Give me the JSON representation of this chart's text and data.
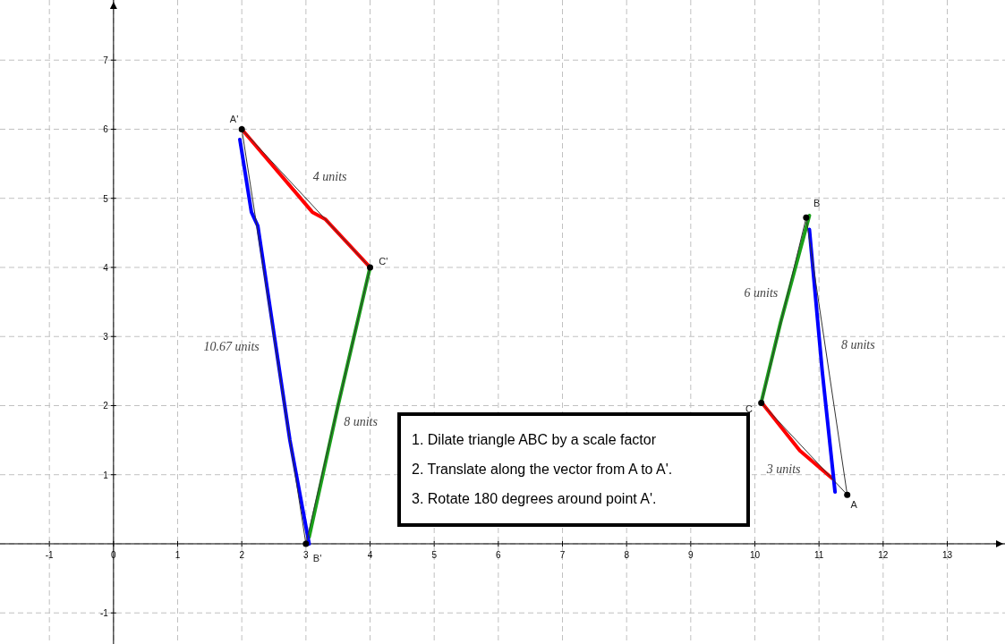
{
  "chart_data": {
    "type": "line",
    "xlim": [
      -1.77,
      13.9
    ],
    "ylim": [
      -1.45,
      7.87
    ],
    "xticks": [
      -1,
      0,
      1,
      2,
      3,
      4,
      5,
      6,
      7,
      8,
      9,
      10,
      11,
      12,
      13
    ],
    "yticks": [
      -1,
      {
        "value": 0,
        "label": null
      },
      1,
      2,
      3,
      4,
      5,
      6,
      7
    ],
    "grid": true,
    "series": [
      {
        "color": "#ff0000",
        "x": [
          2,
          3.1,
          3.3,
          4
        ],
        "values": [
          6,
          4.8,
          4.7,
          4
        ]
      },
      {
        "color": "#ff0000",
        "x": [
          10.1,
          10.7,
          11.2
        ],
        "values": [
          2.05,
          1.35,
          0.95
        ]
      },
      {
        "color": "#1aa01a",
        "x": [
          3.05,
          3.5,
          4
        ],
        "values": [
          0.1,
          2,
          4
        ]
      },
      {
        "color": "#1aa01a",
        "x": [
          10.1,
          10.4,
          10.85
        ],
        "values": [
          2.05,
          3.2,
          4.75
        ]
      },
      {
        "color": "#0000ff",
        "x": [
          1.97,
          2.15,
          2.25,
          2.75,
          3.05
        ],
        "values": [
          5.85,
          4.8,
          4.6,
          1.5,
          0
        ]
      },
      {
        "color": "#0000ff",
        "x": [
          10.85,
          11.05,
          11.25
        ],
        "values": [
          4.55,
          2.5,
          0.75
        ]
      },
      {
        "color": "#333333",
        "x": [
          2,
          4
        ],
        "values": [
          6,
          4
        ]
      },
      {
        "color": "#333333",
        "x": [
          3,
          4
        ],
        "values": [
          0,
          4
        ]
      },
      {
        "color": "#333333",
        "x": [
          2,
          3
        ],
        "values": [
          6,
          0
        ]
      },
      {
        "color": "#333333",
        "x": [
          10.1,
          10.8
        ],
        "values": [
          2.04,
          4.72
        ]
      },
      {
        "color": "#333333",
        "x": [
          10.8,
          11.44
        ],
        "values": [
          4.72,
          0.71
        ]
      },
      {
        "color": "#333333",
        "x": [
          10.1,
          11.44
        ],
        "values": [
          2.04,
          0.71
        ]
      },
      {
        "type": "scatter",
        "color": "#000000",
        "x": [
          2,
          4,
          3,
          10.8,
          10.1,
          11.44
        ],
        "values": [
          6,
          4,
          0,
          4.72,
          2.04,
          0.71
        ]
      }
    ],
    "annotations": [
      {
        "text": "A'",
        "x": 2,
        "y": 6
      },
      {
        "text": "C'",
        "x": 4,
        "y": 4
      },
      {
        "text": "B'",
        "x": 3,
        "y": 0
      },
      {
        "text": "B",
        "x": 10.8,
        "y": 4.72
      },
      {
        "text": "C",
        "x": 10.1,
        "y": 2.04
      },
      {
        "text": "A",
        "x": 11.44,
        "y": 0.71
      },
      {
        "text": "4 units",
        "x": 3,
        "y": 5
      },
      {
        "text": "10.67 units",
        "x": 2.5,
        "y": 3
      },
      {
        "text": "8 units",
        "x": 3.5,
        "y": 2
      },
      {
        "text": "6 units",
        "x": 10.45,
        "y": 3.38
      },
      {
        "text": "8 units",
        "x": 11.12,
        "y": 2.72
      },
      {
        "text": "3 units",
        "x": 10.77,
        "y": 1.38
      },
      "1.  Dilate triangle ABC by a scale factor",
      "2.  Translate along the vector from A to A'.",
      "3.  Rotate 180 degrees around point A'."
    ]
  }
}
